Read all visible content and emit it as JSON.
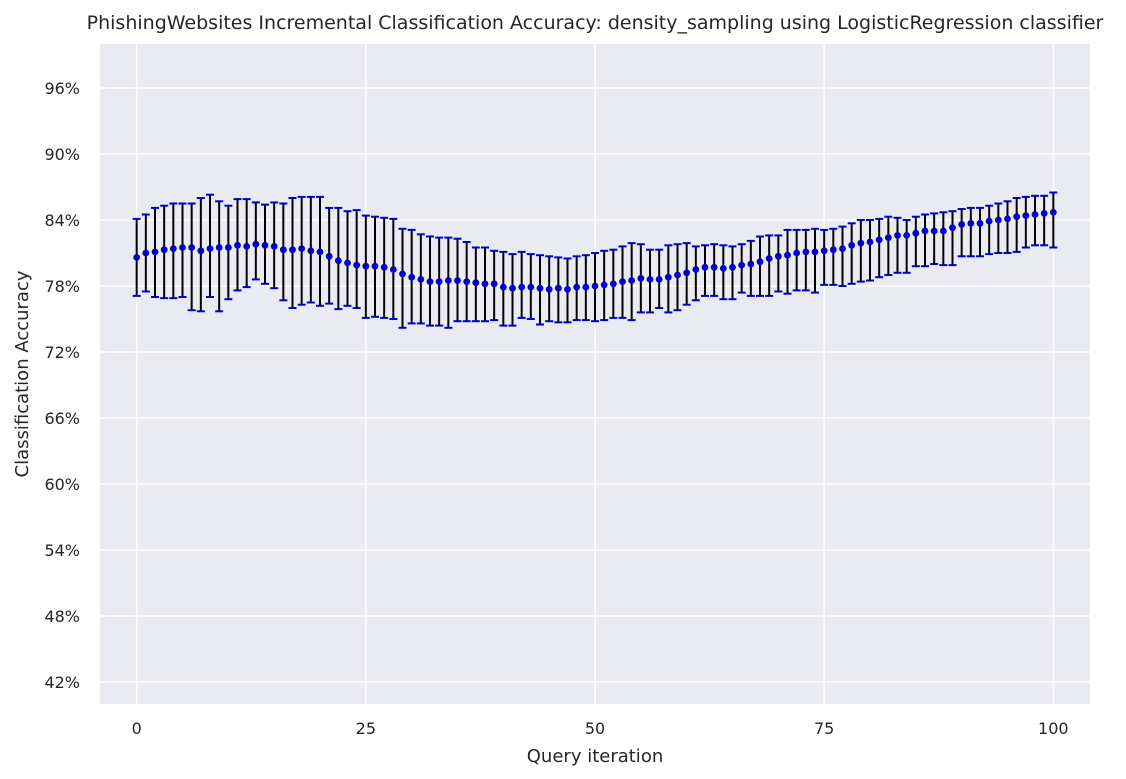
{
  "chart_data": {
    "type": "scatter",
    "title": "PhishingWebsites Incremental Classification Accuracy: density_sampling using LogisticRegression classifier",
    "xlabel": "Query iteration",
    "ylabel": "Classification Accuracy",
    "xlim": [
      -4,
      104
    ],
    "ylim": [
      0.4,
      1.0
    ],
    "x_ticks": [
      0,
      25,
      50,
      75,
      100
    ],
    "x_tick_labels": [
      "0",
      "25",
      "50",
      "75",
      "100"
    ],
    "y_ticks": [
      0.42,
      0.48,
      0.54,
      0.6,
      0.66,
      0.72,
      0.78,
      0.84,
      0.9,
      0.96
    ],
    "y_tick_labels": [
      "42%",
      "48%",
      "54%",
      "60%",
      "66%",
      "72%",
      "78%",
      "84%",
      "90%",
      "96%"
    ],
    "grid": true,
    "background_color": "#eaeaf2",
    "marker_color": "#0000cc",
    "errorbar_color": "#000000",
    "cap_color": "#0000cc",
    "series": [
      {
        "x": [
          0,
          1,
          2,
          3,
          4,
          5,
          6,
          7,
          8,
          9,
          10,
          11,
          12,
          13,
          14,
          15,
          16,
          17,
          18,
          19,
          20,
          21,
          22,
          23,
          24,
          25,
          26,
          27,
          28,
          29,
          30,
          31,
          32,
          33,
          34,
          35,
          36,
          37,
          38,
          39,
          40,
          41,
          42,
          43,
          44,
          45,
          46,
          47,
          48,
          49,
          50,
          51,
          52,
          53,
          54,
          55,
          56,
          57,
          58,
          59,
          60,
          61,
          62,
          63,
          64,
          65,
          66,
          67,
          68,
          69,
          70,
          71,
          72,
          73,
          74,
          75,
          76,
          77,
          78,
          79,
          80,
          81,
          82,
          83,
          84,
          85,
          86,
          87,
          88,
          89,
          90,
          91,
          92,
          93,
          94,
          95,
          96,
          97,
          98,
          99,
          100
        ],
        "y": [
          0.806,
          0.81,
          0.811,
          0.813,
          0.814,
          0.815,
          0.815,
          0.812,
          0.814,
          0.815,
          0.815,
          0.817,
          0.816,
          0.818,
          0.817,
          0.816,
          0.813,
          0.813,
          0.814,
          0.812,
          0.811,
          0.807,
          0.803,
          0.801,
          0.799,
          0.798,
          0.798,
          0.797,
          0.795,
          0.791,
          0.788,
          0.786,
          0.784,
          0.784,
          0.785,
          0.785,
          0.784,
          0.783,
          0.782,
          0.782,
          0.779,
          0.778,
          0.779,
          0.779,
          0.778,
          0.777,
          0.778,
          0.777,
          0.779,
          0.779,
          0.78,
          0.781,
          0.782,
          0.784,
          0.785,
          0.787,
          0.786,
          0.786,
          0.788,
          0.79,
          0.792,
          0.795,
          0.797,
          0.797,
          0.796,
          0.797,
          0.799,
          0.8,
          0.802,
          0.805,
          0.807,
          0.808,
          0.81,
          0.811,
          0.811,
          0.812,
          0.813,
          0.814,
          0.817,
          0.819,
          0.82,
          0.822,
          0.824,
          0.826,
          0.826,
          0.828,
          0.83,
          0.83,
          0.83,
          0.833,
          0.836,
          0.837,
          0.837,
          0.839,
          0.84,
          0.841,
          0.843,
          0.844,
          0.845,
          0.846,
          0.847
        ],
        "lower": [
          0.771,
          0.775,
          0.77,
          0.769,
          0.769,
          0.77,
          0.758,
          0.757,
          0.77,
          0.757,
          0.768,
          0.776,
          0.779,
          0.786,
          0.782,
          0.778,
          0.767,
          0.76,
          0.763,
          0.765,
          0.762,
          0.764,
          0.759,
          0.762,
          0.76,
          0.751,
          0.752,
          0.751,
          0.75,
          0.742,
          0.746,
          0.746,
          0.744,
          0.744,
          0.742,
          0.748,
          0.748,
          0.748,
          0.748,
          0.749,
          0.744,
          0.744,
          0.751,
          0.75,
          0.745,
          0.748,
          0.747,
          0.747,
          0.749,
          0.749,
          0.748,
          0.749,
          0.751,
          0.751,
          0.749,
          0.756,
          0.756,
          0.76,
          0.756,
          0.758,
          0.763,
          0.767,
          0.771,
          0.771,
          0.768,
          0.768,
          0.774,
          0.771,
          0.771,
          0.771,
          0.775,
          0.773,
          0.776,
          0.776,
          0.774,
          0.781,
          0.781,
          0.78,
          0.782,
          0.784,
          0.785,
          0.788,
          0.79,
          0.792,
          0.792,
          0.798,
          0.798,
          0.8,
          0.799,
          0.799,
          0.807,
          0.807,
          0.807,
          0.809,
          0.81,
          0.81,
          0.811,
          0.815,
          0.817,
          0.817,
          0.815
        ],
        "upper": [
          0.841,
          0.845,
          0.851,
          0.853,
          0.855,
          0.855,
          0.855,
          0.86,
          0.863,
          0.857,
          0.853,
          0.859,
          0.859,
          0.856,
          0.854,
          0.856,
          0.855,
          0.86,
          0.861,
          0.861,
          0.861,
          0.851,
          0.851,
          0.848,
          0.849,
          0.844,
          0.843,
          0.842,
          0.841,
          0.832,
          0.831,
          0.827,
          0.825,
          0.824,
          0.824,
          0.823,
          0.82,
          0.815,
          0.815,
          0.812,
          0.811,
          0.809,
          0.811,
          0.809,
          0.808,
          0.807,
          0.806,
          0.805,
          0.807,
          0.808,
          0.81,
          0.812,
          0.813,
          0.816,
          0.819,
          0.818,
          0.813,
          0.813,
          0.817,
          0.818,
          0.819,
          0.816,
          0.817,
          0.818,
          0.817,
          0.816,
          0.818,
          0.821,
          0.825,
          0.826,
          0.826,
          0.831,
          0.831,
          0.831,
          0.832,
          0.831,
          0.832,
          0.834,
          0.837,
          0.84,
          0.84,
          0.841,
          0.843,
          0.842,
          0.84,
          0.843,
          0.845,
          0.846,
          0.847,
          0.848,
          0.85,
          0.851,
          0.851,
          0.853,
          0.855,
          0.857,
          0.86,
          0.861,
          0.862,
          0.862,
          0.865
        ]
      }
    ]
  }
}
